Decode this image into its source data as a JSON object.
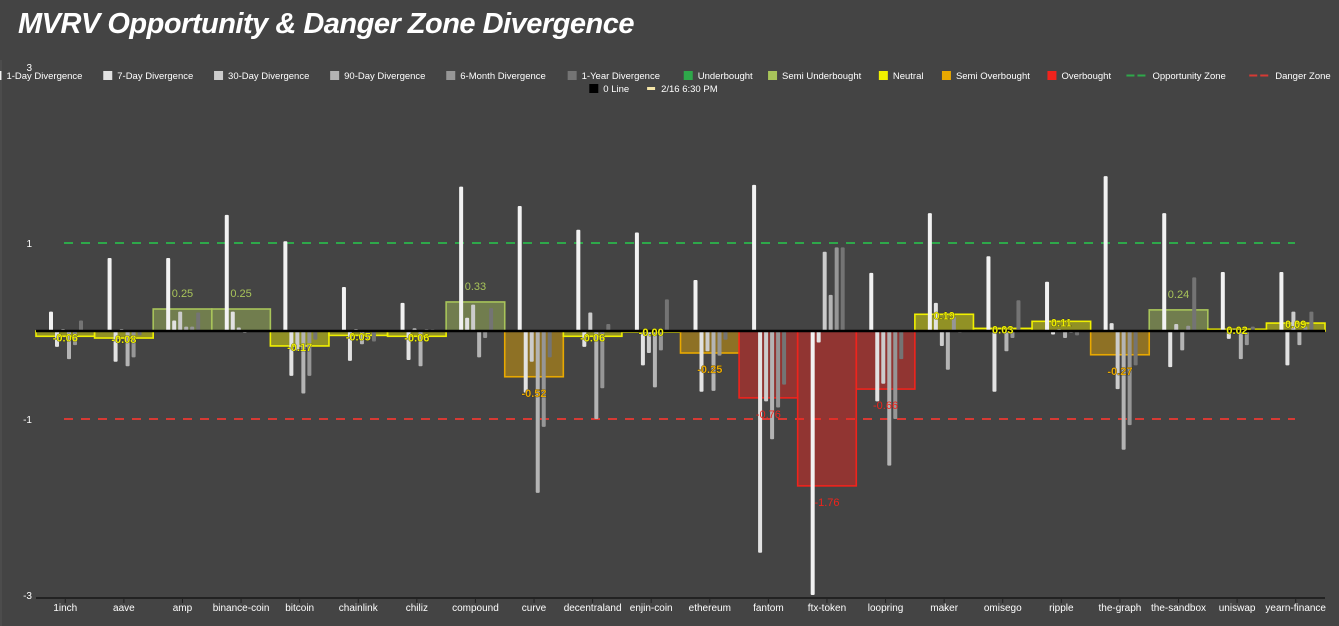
{
  "chart_data": {
    "type": "bar",
    "title": "MVRV Opportunity & Danger Zone Divergence",
    "ylim": [
      -3,
      3
    ],
    "yticks": [
      "3",
      "1",
      "-1",
      "-3"
    ],
    "ytick_values": [
      3,
      1,
      -1,
      -3
    ],
    "grid": false,
    "legend_placement": "top",
    "categories": [
      "1inch",
      "aave",
      "amp",
      "binance-coin",
      "bitcoin",
      "chainlink",
      "chiliz",
      "compound",
      "curve",
      "decentraland",
      "enjin-coin",
      "ethereum",
      "fantom",
      "ftx-token",
      "loopring",
      "maker",
      "omisego",
      "ripple",
      "the-graph",
      "the-sandbox",
      "uniswap",
      "yearn-finance"
    ],
    "series": [
      {
        "name": "1-Day Divergence",
        "color": "#f2f2f2",
        "values": [
          0.22,
          0.83,
          0.83,
          1.32,
          1.02,
          0.5,
          0.32,
          1.64,
          1.42,
          1.15,
          1.12,
          0.58,
          1.66,
          -3.0,
          0.66,
          1.34,
          0.85,
          0.56,
          1.76,
          1.34,
          0.67,
          0.67
        ]
      },
      {
        "name": "7-Day Divergence",
        "color": "#e2e2e2",
        "values": [
          -0.18,
          -0.35,
          0.12,
          0.22,
          -0.51,
          -0.34,
          -0.33,
          0.15,
          -0.7,
          -0.18,
          -0.39,
          -0.69,
          -2.52,
          -0.13,
          -0.8,
          0.32,
          -0.69,
          -0.04,
          0.09,
          -0.41,
          -0.09,
          -0.39
        ]
      },
      {
        "name": "30-Day Divergence",
        "color": "#cccccc",
        "values": [
          0.02,
          0.02,
          0.22,
          0.04,
          -0.22,
          0.02,
          0.03,
          0.3,
          -0.35,
          0.21,
          -0.25,
          -0.23,
          -0.8,
          0.9,
          -0.6,
          -0.17,
          0.01,
          0.02,
          -0.66,
          0.08,
          0.02,
          0.22
        ]
      },
      {
        "name": "90-Day Divergence",
        "color": "#b4b4b4",
        "values": [
          -0.32,
          -0.4,
          0.05,
          -0.02,
          -0.71,
          -0.15,
          -0.4,
          -0.3,
          -1.84,
          -1.0,
          -0.64,
          -0.68,
          -1.23,
          0.41,
          -1.53,
          -0.44,
          -0.23,
          -0.08,
          -1.35,
          -0.22,
          -0.32,
          -0.16
        ]
      },
      {
        "name": "6-Month Divergence",
        "color": "#969696",
        "values": [
          -0.16,
          -0.3,
          0.05,
          0.01,
          -0.51,
          -0.1,
          0.02,
          -0.08,
          -1.09,
          -0.65,
          -0.22,
          -0.28,
          -0.87,
          0.95,
          -1.0,
          0.16,
          -0.08,
          -0.02,
          -1.07,
          0.06,
          -0.16,
          0.05
        ]
      },
      {
        "name": "1-Year Divergence",
        "color": "#747474",
        "values": [
          0.12,
          -0.05,
          0.21,
          0.0,
          -0.1,
          -0.12,
          0.02,
          0.26,
          -0.3,
          0.08,
          0.36,
          -0.1,
          -0.61,
          0.95,
          -0.32,
          -0.02,
          0.35,
          -0.05,
          -0.39,
          0.61,
          0.05,
          0.22
        ]
      }
    ],
    "current": {
      "name": "2/16 6:30 PM",
      "color": "#f5e6a8",
      "values": [
        -0.06,
        -0.08,
        0.25,
        0.25,
        -0.17,
        -0.05,
        -0.06,
        0.33,
        -0.52,
        -0.06,
        -0.0,
        -0.25,
        -0.76,
        -1.76,
        -0.66,
        0.19,
        0.03,
        0.11,
        -0.27,
        0.24,
        0.02,
        0.09
      ],
      "labels": [
        "-0.06",
        "-0.08",
        "0.25",
        "0.25",
        "-0.17",
        "-0.05",
        "-0.06",
        "0.33",
        "-0.52",
        "-0.06",
        "-0.00",
        "-0.25",
        "-0.76",
        "-1.76",
        "-0.66",
        "0.19",
        "0.03",
        "0.11",
        "-0.27",
        "0.24",
        "0.02",
        "0.09"
      ],
      "zones": [
        "neutral",
        "neutral",
        "semi_underbought",
        "semi_underbought",
        "neutral",
        "neutral",
        "neutral",
        "semi_underbought",
        "semi_overbought",
        "neutral",
        "neutral",
        "semi_overbought",
        "overbought",
        "overbought",
        "overbought",
        "neutral",
        "neutral",
        "neutral",
        "semi_overbought",
        "semi_underbought",
        "neutral",
        "neutral"
      ]
    },
    "zones": {
      "underbought": {
        "name": "Underbought",
        "color": "#2ea84a"
      },
      "semi_underbought": {
        "name": "Semi Underbought",
        "color": "#a8c45a"
      },
      "neutral": {
        "name": "Neutral",
        "color": "#f0f000"
      },
      "semi_overbought": {
        "name": "Semi Overbought",
        "color": "#e8a800"
      },
      "overbought": {
        "name": "Overbought",
        "color": "#f0231c"
      }
    },
    "reference_lines": [
      {
        "name": "Opportunity Zone",
        "value": 1,
        "color": "#2ea84a",
        "dash": true
      },
      {
        "name": "Danger Zone",
        "value": -1,
        "color": "#d63a34",
        "dash": true
      },
      {
        "name": "0 Line",
        "value": 0,
        "color": "#000000",
        "dash": false
      }
    ]
  }
}
